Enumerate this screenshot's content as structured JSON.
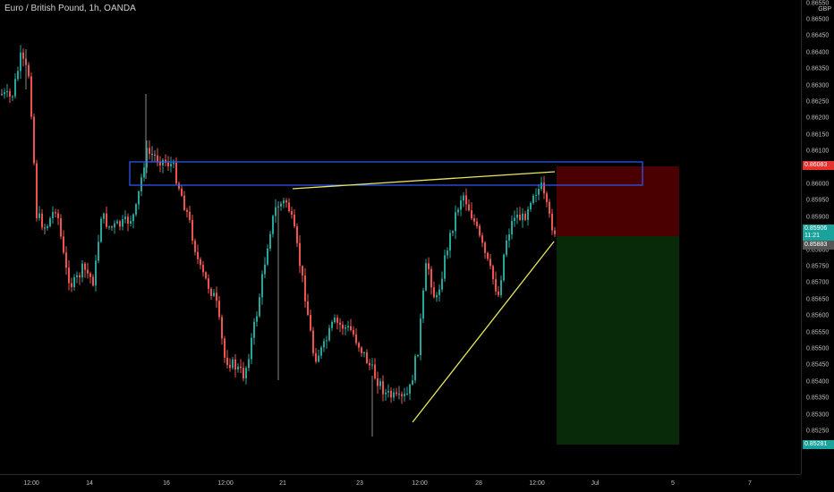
{
  "header": {
    "title": "Euro / British Pound, 1h, OANDA",
    "currency": "GBP"
  },
  "price_axis": {
    "top_partial": "0.86550",
    "ticks": [
      "0.86500",
      "0.86450",
      "0.86400",
      "0.86350",
      "0.86300",
      "0.86250",
      "0.86200",
      "0.86150",
      "0.86100",
      "0.86050",
      "0.86000",
      "0.85950",
      "0.85900",
      "0.85850",
      "0.85800",
      "0.85750",
      "0.85700",
      "0.85650",
      "0.85600",
      "0.85550",
      "0.85500",
      "0.85450",
      "0.85400",
      "0.85350",
      "0.85300",
      "0.85250",
      "0.85200"
    ]
  },
  "badges": {
    "stop": {
      "value": "0.86083",
      "color": "#e5322d"
    },
    "current": {
      "value": "0.85906",
      "countdown": "11:21",
      "color": "#1aa39b"
    },
    "close": {
      "value": "0.85883",
      "color": "#555555"
    },
    "target": {
      "value": "0.85281",
      "color": "#1aa39b"
    }
  },
  "time_axis": {
    "labels": [
      "12:00",
      "14",
      "16",
      "12:00",
      "21",
      "23",
      "12:00",
      "28",
      "12:00",
      "Jul",
      "5",
      "7"
    ]
  },
  "colors": {
    "up": "#26a69a",
    "down": "#ef5350",
    "neutral": "#8a8a8a",
    "rectangle": "#2f5bff",
    "trendline": "#e8e85a",
    "risk_zone": "#4a0000",
    "reward_zone": "#082a08"
  },
  "drawings": {
    "resistance_zone": {
      "top": 0.86097,
      "bottom": 0.8603
    },
    "rising_trendline": {
      "from": 0.85345,
      "to": 0.85895
    },
    "top_trendline": {
      "from": 0.86015,
      "to": 0.8607
    },
    "short_position": {
      "entry": 0.8589,
      "stop": 0.86083,
      "target": 0.85281
    }
  }
}
